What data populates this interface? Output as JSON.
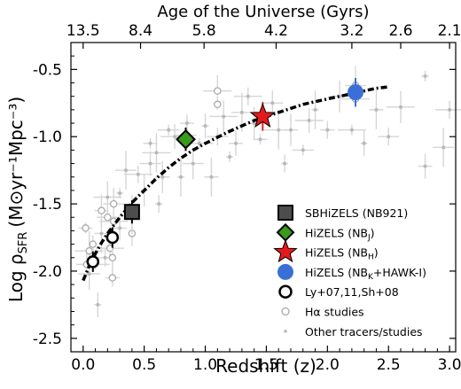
{
  "chart_data": {
    "type": "scatter",
    "title": "",
    "xlabel": "Redshift (z)",
    "ylabel": "Log ρ",
    "ylabel_sub": "SFR",
    "ylabel_units": "(M⊙yr⁻¹Mpc⁻³)",
    "top_xlabel": "Age of the Universe (Gyrs)",
    "xlim": [
      -0.1,
      3.05
    ],
    "ylim": [
      -2.6,
      -0.3
    ],
    "xticks": [
      "0.0",
      "0.5",
      "1.0",
      "1.5",
      "2.0",
      "2.5",
      "3.0"
    ],
    "xtick_values": [
      0,
      0.5,
      1.0,
      1.5,
      2.0,
      2.5,
      3.0
    ],
    "yticks": [
      "-2.5",
      "-2.0",
      "-1.5",
      "-1.0",
      "-0.5"
    ],
    "ytick_values": [
      -2.5,
      -2.0,
      -1.5,
      -1.0,
      -0.5
    ],
    "top_ticks": [
      {
        "label": "13.5",
        "z": 0.0
      },
      {
        "label": "8.4",
        "z": 0.47
      },
      {
        "label": "5.8",
        "z": 0.99
      },
      {
        "label": "4.2",
        "z": 1.58
      },
      {
        "label": "3.2",
        "z": 2.2
      },
      {
        "label": "2.6",
        "z": 2.6
      },
      {
        "label": "2.1",
        "z": 3.0
      }
    ],
    "grid": false,
    "legend_position": "lower-right",
    "series": [
      {
        "name": "SBHiZELS (NB921)",
        "sub": "",
        "tail": "",
        "marker": "square",
        "color": "#4d4d4d",
        "points": [
          {
            "x": 0.4,
            "y": -1.56,
            "yerr": 0.06
          }
        ]
      },
      {
        "name": "HiZELS (NB",
        "sub": "J",
        "tail": ")",
        "marker": "diamond",
        "color": "#3a9a1e",
        "points": [
          {
            "x": 0.84,
            "y": -1.02,
            "yerr": 0.06
          }
        ]
      },
      {
        "name": "HiZELS (NB",
        "sub": "H",
        "tail": ")",
        "marker": "star",
        "color": "#e31a1c",
        "points": [
          {
            "x": 1.47,
            "y": -0.85,
            "yerr": 0.08
          }
        ]
      },
      {
        "name": "HiZELS (NB",
        "sub": "K",
        "tail": "+HAWK-I)",
        "marker": "circle-big",
        "color": "#3b6fd8",
        "points": [
          {
            "x": 2.23,
            "y": -0.67,
            "yerr": 0.08
          }
        ]
      },
      {
        "name": "Ly+07,11,Sh+08",
        "sub": "",
        "tail": "",
        "marker": "circle-open",
        "color": "#000000",
        "points": [
          {
            "x": 0.08,
            "y": -1.93,
            "yerr": 0.05
          },
          {
            "x": 0.24,
            "y": -1.75,
            "yerr": 0.05
          }
        ]
      },
      {
        "name": "Hα studies",
        "sub": "",
        "tail": "",
        "marker": "circle-small",
        "color": "#aaaaaa",
        "points": [
          {
            "x": 0.02,
            "y": -1.68
          },
          {
            "x": 0.03,
            "y": -1.95
          },
          {
            "x": 0.05,
            "y": -1.85
          },
          {
            "x": 0.08,
            "y": -1.8
          },
          {
            "x": 0.15,
            "y": -1.55
          },
          {
            "x": 0.2,
            "y": -1.6
          },
          {
            "x": 0.22,
            "y": -1.83
          },
          {
            "x": 0.24,
            "y": -1.9
          },
          {
            "x": 0.24,
            "y": -2.05
          },
          {
            "x": 0.25,
            "y": -1.5
          },
          {
            "x": 0.25,
            "y": -1.63
          },
          {
            "x": 0.4,
            "y": -1.72
          },
          {
            "x": 0.4,
            "y": -1.58
          },
          {
            "x": 0.84,
            "y": -0.99
          },
          {
            "x": 1.1,
            "y": -0.66
          },
          {
            "x": 1.1,
            "y": -0.76
          },
          {
            "x": 1.47,
            "y": -0.83
          },
          {
            "x": 2.23,
            "y": -0.62
          },
          {
            "x": 2.23,
            "y": -0.72
          }
        ]
      },
      {
        "name": "Other tracers/studies",
        "sub": "",
        "tail": "",
        "marker": "dot",
        "color": "#b8b8b8",
        "points": [
          {
            "x": 0.05,
            "y": -2.02
          },
          {
            "x": 0.1,
            "y": -1.95
          },
          {
            "x": 0.12,
            "y": -2.25
          },
          {
            "x": 0.15,
            "y": -1.72
          },
          {
            "x": 0.18,
            "y": -1.9
          },
          {
            "x": 0.2,
            "y": -1.45
          },
          {
            "x": 0.3,
            "y": -1.42
          },
          {
            "x": 0.3,
            "y": -1.68
          },
          {
            "x": 0.35,
            "y": -1.25
          },
          {
            "x": 0.45,
            "y": -1.28
          },
          {
            "x": 0.5,
            "y": -1.4
          },
          {
            "x": 0.55,
            "y": -1.05
          },
          {
            "x": 0.55,
            "y": -1.2
          },
          {
            "x": 0.6,
            "y": -1.12
          },
          {
            "x": 0.62,
            "y": -1.5
          },
          {
            "x": 0.65,
            "y": -1.3
          },
          {
            "x": 0.7,
            "y": -0.95
          },
          {
            "x": 0.75,
            "y": -1.0
          },
          {
            "x": 0.8,
            "y": -1.3
          },
          {
            "x": 0.85,
            "y": -0.9
          },
          {
            "x": 0.9,
            "y": -1.2
          },
          {
            "x": 0.95,
            "y": -1.05
          },
          {
            "x": 1.0,
            "y": -0.92
          },
          {
            "x": 1.05,
            "y": -1.3
          },
          {
            "x": 1.1,
            "y": -1.0
          },
          {
            "x": 1.15,
            "y": -0.85
          },
          {
            "x": 1.2,
            "y": -1.15
          },
          {
            "x": 1.25,
            "y": -1.05
          },
          {
            "x": 1.3,
            "y": -0.82
          },
          {
            "x": 1.35,
            "y": -0.7
          },
          {
            "x": 1.4,
            "y": -0.9
          },
          {
            "x": 1.45,
            "y": -1.02
          },
          {
            "x": 1.55,
            "y": -0.75
          },
          {
            "x": 1.6,
            "y": -0.95
          },
          {
            "x": 1.65,
            "y": -1.2
          },
          {
            "x": 1.7,
            "y": -0.95
          },
          {
            "x": 1.8,
            "y": -1.1
          },
          {
            "x": 1.85,
            "y": -0.88
          },
          {
            "x": 1.9,
            "y": -0.8
          },
          {
            "x": 2.0,
            "y": -0.95
          },
          {
            "x": 2.1,
            "y": -0.7
          },
          {
            "x": 2.2,
            "y": -0.95
          },
          {
            "x": 2.3,
            "y": -1.05
          },
          {
            "x": 2.4,
            "y": -0.8
          },
          {
            "x": 2.5,
            "y": -1.0
          },
          {
            "x": 2.6,
            "y": -0.78
          },
          {
            "x": 2.8,
            "y": -0.55
          },
          {
            "x": 2.8,
            "y": -1.22
          },
          {
            "x": 2.95,
            "y": -1.08
          },
          {
            "x": 3.0,
            "y": -0.8
          }
        ]
      }
    ],
    "fit": {
      "style": "dashed",
      "color": "#000000",
      "x": [
        0.0,
        0.05,
        0.1,
        0.15,
        0.2,
        0.3,
        0.4,
        0.5,
        0.6,
        0.7,
        0.8,
        0.9,
        1.0,
        1.2,
        1.4,
        1.6,
        1.8,
        2.0,
        2.2,
        2.4,
        2.5
      ],
      "y": [
        -2.07,
        -1.96,
        -1.87,
        -1.79,
        -1.72,
        -1.6,
        -1.49,
        -1.4,
        -1.31,
        -1.23,
        -1.16,
        -1.1,
        -1.05,
        -0.96,
        -0.88,
        -0.82,
        -0.76,
        -0.72,
        -0.68,
        -0.64,
        -0.63
      ]
    }
  }
}
